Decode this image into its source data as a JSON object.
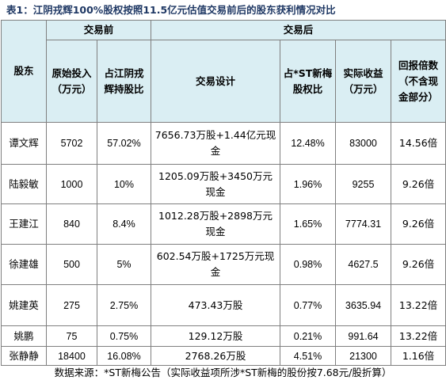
{
  "title": "表1：江阴戎辉100%股权按照11.5亿元估值交易前后的股东获利情况对比",
  "header": {
    "shareholder": "股东",
    "before_group": "交易前",
    "after_group": "交易后",
    "orig_invest": "原始投入（万元）",
    "orig_ratio": "占江阴戎辉持股比",
    "design": "交易设计",
    "st_ratio": "占*ST新梅股权比",
    "actual_gain": "实际收益（万元）",
    "return_mult": "回报倍数（不含现金部分）"
  },
  "rows": [
    {
      "name": "谭文辉",
      "invest": "5702",
      "ratio": "57.02%",
      "design": "7656.73万股+1.44亿元现金",
      "st": "12.48%",
      "gain": "83000",
      "mult": "14.56倍"
    },
    {
      "name": "陆毅敏",
      "invest": "1000",
      "ratio": "10%",
      "design": "1205.09万股+3450万元现金",
      "st": "1.96%",
      "gain": "9255",
      "mult": "9.26倍"
    },
    {
      "name": "王建江",
      "invest": "840",
      "ratio": "8.4%",
      "design": "1012.28万股+2898万元现金",
      "st": "1.65%",
      "gain": "7774.31",
      "mult": "9.26倍"
    },
    {
      "name": "徐建雄",
      "invest": "500",
      "ratio": "5%",
      "design": "602.54万股+1725万元现金",
      "st": "0.98%",
      "gain": "4627.5",
      "mult": "9.26倍"
    },
    {
      "name": "姚建英",
      "invest": "275",
      "ratio": "2.75%",
      "design": "473.43万股",
      "st": "0.77%",
      "gain": "3635.94",
      "mult": "13.22倍"
    },
    {
      "name": "姚鹏",
      "invest": "75",
      "ratio": "0.75%",
      "design": "129.12万股",
      "st": "0.21%",
      "gain": "991.64",
      "mult": "13.22倍"
    },
    {
      "name": "张静静",
      "invest": "18400",
      "ratio": "16.08%",
      "design": "2768.26万股",
      "st": "4.51%",
      "gain": "21300",
      "mult": "1.16倍"
    }
  ],
  "footnote": "数据来源：*ST新梅公告（实际收益项所涉*ST新梅的股份按7.68元/股折算）",
  "colors": {
    "header_bg": "#daeef3",
    "title": "#1f3864",
    "border": "#7f7f7f"
  }
}
